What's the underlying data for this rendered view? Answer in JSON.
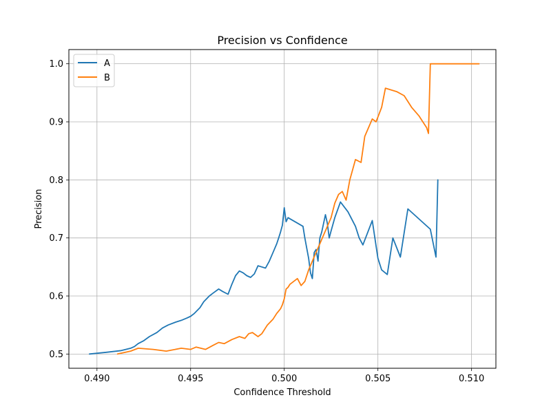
{
  "chart_data": {
    "type": "line",
    "title": "Precision vs Confidence",
    "xlabel": "Confidence Threshold",
    "ylabel": "Precision",
    "xlim": [
      0.4885,
      0.5113
    ],
    "ylim": [
      0.4755,
      1.0245
    ],
    "grid": true,
    "legend_position": "top-left",
    "x_ticks": [
      0.49,
      0.495,
      0.5,
      0.505,
      0.51
    ],
    "x_tick_labels": [
      "0.490",
      "0.495",
      "0.500",
      "0.505",
      "0.510"
    ],
    "y_ticks": [
      0.5,
      0.6,
      0.7,
      0.8,
      0.9,
      1.0
    ],
    "y_tick_labels": [
      "0.5",
      "0.6",
      "0.7",
      "0.8",
      "0.9",
      "1.0"
    ],
    "series": [
      {
        "name": "A",
        "color": "#1f77b4",
        "x": [
          0.4896,
          0.4905,
          0.4913,
          0.4918,
          0.492,
          0.4922,
          0.4925,
          0.4928,
          0.4932,
          0.4935,
          0.4938,
          0.4942,
          0.4945,
          0.4948,
          0.495,
          0.4952,
          0.4955,
          0.4957,
          0.496,
          0.4962,
          0.4965,
          0.4967,
          0.497,
          0.4972,
          0.4974,
          0.4976,
          0.4978,
          0.498,
          0.4982,
          0.4984,
          0.4986,
          0.4988,
          0.499,
          0.4992,
          0.4994,
          0.4996,
          0.4997,
          0.4998,
          0.4999,
          0.5,
          0.5001,
          0.5002,
          0.5003,
          0.501,
          0.5011,
          0.5012,
          0.5013,
          0.5014,
          0.5015,
          0.5016,
          0.5017,
          0.5018,
          0.5019,
          0.502,
          0.5021,
          0.5022,
          0.5023,
          0.5024,
          0.5025,
          0.5027,
          0.503,
          0.5034,
          0.5038,
          0.504,
          0.5042,
          0.5047,
          0.505,
          0.5052,
          0.5055,
          0.5058,
          0.5062,
          0.5066,
          0.5078,
          0.5081,
          0.5082
        ],
        "y": [
          0.5,
          0.503,
          0.506,
          0.51,
          0.513,
          0.518,
          0.523,
          0.53,
          0.537,
          0.545,
          0.55,
          0.555,
          0.558,
          0.562,
          0.565,
          0.57,
          0.58,
          0.59,
          0.6,
          0.605,
          0.612,
          0.608,
          0.603,
          0.62,
          0.635,
          0.643,
          0.64,
          0.635,
          0.632,
          0.638,
          0.652,
          0.65,
          0.648,
          0.66,
          0.675,
          0.69,
          0.7,
          0.71,
          0.722,
          0.752,
          0.728,
          0.735,
          0.733,
          0.72,
          0.7,
          0.682,
          0.665,
          0.64,
          0.63,
          0.675,
          0.68,
          0.66,
          0.7,
          0.71,
          0.725,
          0.74,
          0.725,
          0.7,
          0.712,
          0.735,
          0.762,
          0.745,
          0.72,
          0.7,
          0.688,
          0.73,
          0.665,
          0.645,
          0.637,
          0.7,
          0.667,
          0.75,
          0.715,
          0.667,
          0.8
        ]
      },
      {
        "name": "B",
        "color": "#ff7f0e",
        "x": [
          0.4911,
          0.4918,
          0.4922,
          0.493,
          0.4937,
          0.4945,
          0.495,
          0.4953,
          0.4958,
          0.4962,
          0.4965,
          0.4968,
          0.4972,
          0.4976,
          0.4979,
          0.4981,
          0.4983,
          0.4986,
          0.4988,
          0.4991,
          0.4994,
          0.4996,
          0.4998,
          0.4999,
          0.5,
          0.5001,
          0.5002,
          0.5003,
          0.5005,
          0.5007,
          0.5009,
          0.5011,
          0.5013,
          0.5015,
          0.5017,
          0.5019,
          0.5021,
          0.5023,
          0.5025,
          0.5027,
          0.5029,
          0.5031,
          0.5033,
          0.5035,
          0.5038,
          0.5041,
          0.5043,
          0.5045,
          0.5047,
          0.5049,
          0.5052,
          0.5054,
          0.506,
          0.5064,
          0.5068,
          0.5072,
          0.5074,
          0.5076,
          0.5077,
          0.5078,
          0.5104
        ],
        "y": [
          0.5,
          0.505,
          0.51,
          0.508,
          0.505,
          0.51,
          0.508,
          0.512,
          0.508,
          0.515,
          0.52,
          0.518,
          0.525,
          0.53,
          0.527,
          0.535,
          0.537,
          0.53,
          0.535,
          0.55,
          0.56,
          0.57,
          0.578,
          0.585,
          0.595,
          0.612,
          0.615,
          0.62,
          0.625,
          0.63,
          0.618,
          0.625,
          0.645,
          0.66,
          0.675,
          0.69,
          0.705,
          0.72,
          0.735,
          0.76,
          0.775,
          0.78,
          0.765,
          0.8,
          0.835,
          0.83,
          0.875,
          0.89,
          0.905,
          0.9,
          0.925,
          0.958,
          0.952,
          0.945,
          0.925,
          0.91,
          0.9,
          0.89,
          0.88,
          1.0,
          1.0
        ]
      }
    ]
  }
}
